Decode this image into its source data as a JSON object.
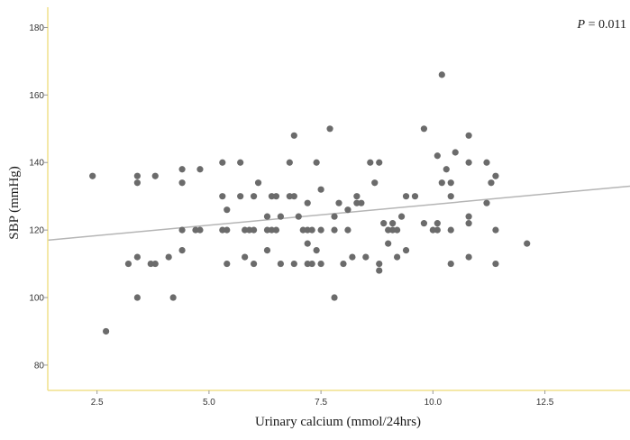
{
  "chart_data": {
    "type": "scatter",
    "title": "",
    "xlabel": "Urinary calcium (mmol/24hrs)",
    "ylabel": "SBP (mmHg)",
    "xlim": [
      1.4,
      14.4
    ],
    "ylim": [
      72.5,
      186
    ],
    "x_ticks": [
      2.5,
      5.0,
      7.5,
      10.0,
      12.5
    ],
    "x_tick_labels": [
      "2.5",
      "5.0",
      "7.5",
      "10.0",
      "12.5"
    ],
    "y_ticks": [
      80,
      100,
      120,
      140,
      160,
      180
    ],
    "y_tick_labels": [
      "80",
      "100",
      "120",
      "140",
      "160",
      "180"
    ],
    "grid": false,
    "annotation": {
      "italic": "P",
      "rest": " = 0.011"
    },
    "fit_line": {
      "x": [
        1.4,
        14.4
      ],
      "y": [
        117,
        133
      ]
    },
    "points": [
      {
        "x": 2.4,
        "y": 136
      },
      {
        "x": 2.7,
        "y": 90
      },
      {
        "x": 3.2,
        "y": 110
      },
      {
        "x": 3.4,
        "y": 136
      },
      {
        "x": 3.4,
        "y": 134
      },
      {
        "x": 3.4,
        "y": 112
      },
      {
        "x": 3.4,
        "y": 100
      },
      {
        "x": 3.7,
        "y": 110
      },
      {
        "x": 3.8,
        "y": 110
      },
      {
        "x": 3.8,
        "y": 136
      },
      {
        "x": 4.1,
        "y": 112
      },
      {
        "x": 4.2,
        "y": 100
      },
      {
        "x": 4.4,
        "y": 138
      },
      {
        "x": 4.4,
        "y": 134
      },
      {
        "x": 4.4,
        "y": 120
      },
      {
        "x": 4.4,
        "y": 114
      },
      {
        "x": 4.7,
        "y": 120
      },
      {
        "x": 4.8,
        "y": 120
      },
      {
        "x": 4.8,
        "y": 138
      },
      {
        "x": 5.3,
        "y": 140
      },
      {
        "x": 5.3,
        "y": 130
      },
      {
        "x": 5.3,
        "y": 120
      },
      {
        "x": 5.4,
        "y": 126
      },
      {
        "x": 5.4,
        "y": 120
      },
      {
        "x": 5.4,
        "y": 110
      },
      {
        "x": 5.7,
        "y": 140
      },
      {
        "x": 5.7,
        "y": 130
      },
      {
        "x": 5.8,
        "y": 120
      },
      {
        "x": 5.8,
        "y": 112
      },
      {
        "x": 5.9,
        "y": 120
      },
      {
        "x": 6.0,
        "y": 130
      },
      {
        "x": 6.0,
        "y": 120
      },
      {
        "x": 6.0,
        "y": 110
      },
      {
        "x": 6.1,
        "y": 134
      },
      {
        "x": 6.3,
        "y": 124
      },
      {
        "x": 6.3,
        "y": 120
      },
      {
        "x": 6.3,
        "y": 114
      },
      {
        "x": 6.4,
        "y": 130
      },
      {
        "x": 6.4,
        "y": 120
      },
      {
        "x": 6.5,
        "y": 130
      },
      {
        "x": 6.5,
        "y": 120
      },
      {
        "x": 6.6,
        "y": 124
      },
      {
        "x": 6.6,
        "y": 110
      },
      {
        "x": 6.8,
        "y": 140
      },
      {
        "x": 6.8,
        "y": 130
      },
      {
        "x": 6.9,
        "y": 148
      },
      {
        "x": 6.9,
        "y": 130
      },
      {
        "x": 6.9,
        "y": 110
      },
      {
        "x": 7.0,
        "y": 124
      },
      {
        "x": 7.1,
        "y": 120
      },
      {
        "x": 7.2,
        "y": 128
      },
      {
        "x": 7.2,
        "y": 120
      },
      {
        "x": 7.2,
        "y": 116
      },
      {
        "x": 7.2,
        "y": 110
      },
      {
        "x": 7.3,
        "y": 120
      },
      {
        "x": 7.3,
        "y": 110
      },
      {
        "x": 7.4,
        "y": 140
      },
      {
        "x": 7.4,
        "y": 114
      },
      {
        "x": 7.5,
        "y": 132
      },
      {
        "x": 7.5,
        "y": 120
      },
      {
        "x": 7.5,
        "y": 110
      },
      {
        "x": 7.7,
        "y": 150
      },
      {
        "x": 7.8,
        "y": 124
      },
      {
        "x": 7.8,
        "y": 120
      },
      {
        "x": 7.8,
        "y": 100
      },
      {
        "x": 7.9,
        "y": 128
      },
      {
        "x": 8.0,
        "y": 110
      },
      {
        "x": 8.1,
        "y": 126
      },
      {
        "x": 8.1,
        "y": 120
      },
      {
        "x": 8.2,
        "y": 112
      },
      {
        "x": 8.3,
        "y": 130
      },
      {
        "x": 8.3,
        "y": 128
      },
      {
        "x": 8.4,
        "y": 128
      },
      {
        "x": 8.5,
        "y": 112
      },
      {
        "x": 8.6,
        "y": 140
      },
      {
        "x": 8.7,
        "y": 134
      },
      {
        "x": 8.8,
        "y": 140
      },
      {
        "x": 8.8,
        "y": 110
      },
      {
        "x": 8.8,
        "y": 108
      },
      {
        "x": 8.9,
        "y": 122
      },
      {
        "x": 9.0,
        "y": 120
      },
      {
        "x": 9.0,
        "y": 116
      },
      {
        "x": 9.1,
        "y": 122
      },
      {
        "x": 9.1,
        "y": 120
      },
      {
        "x": 9.2,
        "y": 120
      },
      {
        "x": 9.2,
        "y": 112
      },
      {
        "x": 9.3,
        "y": 124
      },
      {
        "x": 9.4,
        "y": 130
      },
      {
        "x": 9.4,
        "y": 114
      },
      {
        "x": 9.6,
        "y": 130
      },
      {
        "x": 9.8,
        "y": 150
      },
      {
        "x": 9.8,
        "y": 122
      },
      {
        "x": 10.0,
        "y": 120
      },
      {
        "x": 10.1,
        "y": 142
      },
      {
        "x": 10.1,
        "y": 122
      },
      {
        "x": 10.1,
        "y": 120
      },
      {
        "x": 10.2,
        "y": 166
      },
      {
        "x": 10.2,
        "y": 134
      },
      {
        "x": 10.3,
        "y": 138
      },
      {
        "x": 10.4,
        "y": 134
      },
      {
        "x": 10.4,
        "y": 130
      },
      {
        "x": 10.4,
        "y": 120
      },
      {
        "x": 10.4,
        "y": 110
      },
      {
        "x": 10.5,
        "y": 143
      },
      {
        "x": 10.8,
        "y": 148
      },
      {
        "x": 10.8,
        "y": 140
      },
      {
        "x": 10.8,
        "y": 124
      },
      {
        "x": 10.8,
        "y": 122
      },
      {
        "x": 10.8,
        "y": 112
      },
      {
        "x": 11.2,
        "y": 140
      },
      {
        "x": 11.2,
        "y": 128
      },
      {
        "x": 11.3,
        "y": 134
      },
      {
        "x": 11.4,
        "y": 136
      },
      {
        "x": 11.4,
        "y": 120
      },
      {
        "x": 11.4,
        "y": 110
      },
      {
        "x": 12.1,
        "y": 116
      }
    ]
  },
  "colors": {
    "point": "#6b6b6b",
    "fit_line": "#b5b5b5",
    "axis": "#f0e08c",
    "tick": "#999999"
  }
}
